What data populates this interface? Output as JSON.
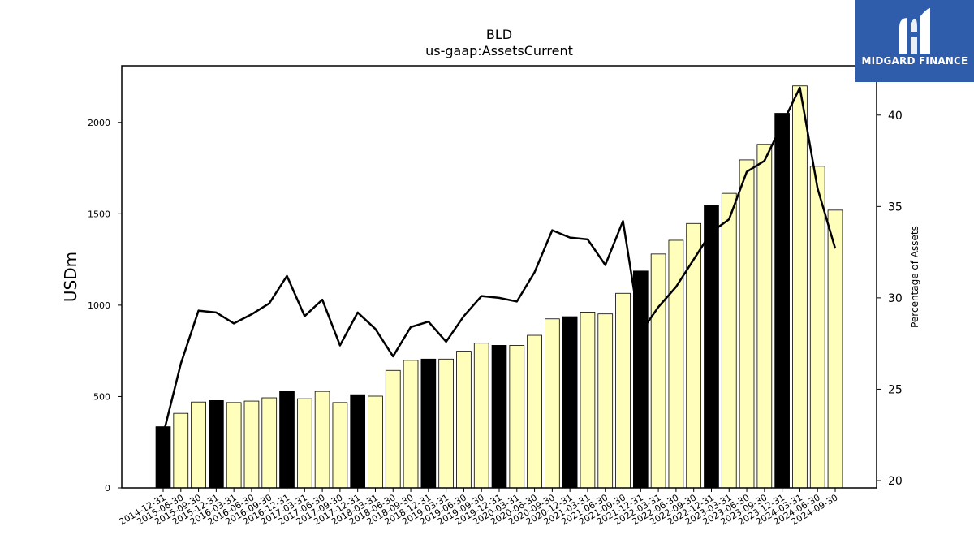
{
  "chart_data": {
    "type": "bar",
    "title": "BLD",
    "subtitle": "us-gaap:AssetsCurrent",
    "ylabel": "USDm",
    "y2label": "Percentage of Assets",
    "ylim": [
      0,
      2310
    ],
    "y2lim": [
      19.6,
      42.7
    ],
    "yticks": [
      0,
      500,
      1000,
      1500,
      2000
    ],
    "y2ticks": [
      20,
      25,
      30,
      35,
      40
    ],
    "categories": [
      "2014-12-31",
      "2015-06-30",
      "2015-09-30",
      "2015-12-31",
      "2016-03-31",
      "2016-06-30",
      "2016-09-30",
      "2016-12-31",
      "2017-03-31",
      "2017-06-30",
      "2017-09-30",
      "2017-12-31",
      "2018-03-31",
      "2018-06-30",
      "2018-09-30",
      "2018-12-31",
      "2019-03-31",
      "2019-06-30",
      "2019-09-30",
      "2019-12-31",
      "2020-03-31",
      "2020-06-30",
      "2020-09-30",
      "2020-12-31",
      "2021-03-31",
      "2021-06-30",
      "2021-09-30",
      "2021-12-31",
      "2022-03-31",
      "2022-06-30",
      "2022-09-30",
      "2022-12-31",
      "2023-03-31",
      "2023-06-30",
      "2023-09-30",
      "2023-12-31",
      "2024-03-31",
      "2024-06-30",
      "2024-09-30"
    ],
    "series": [
      {
        "type": "bar",
        "values": [
          335,
          408,
          470,
          478,
          467,
          475,
          493,
          528,
          488,
          528,
          467,
          510,
          502,
          643,
          698,
          705,
          705,
          748,
          792,
          780,
          780,
          835,
          925,
          937,
          962,
          952,
          1065,
          1187,
          1280,
          1355,
          1447,
          1545,
          1612,
          1795,
          1880,
          2050,
          2200,
          1760,
          1520
        ],
        "year_end_flags": [
          true,
          false,
          false,
          true,
          false,
          false,
          false,
          true,
          false,
          false,
          false,
          true,
          false,
          false,
          false,
          true,
          false,
          false,
          false,
          true,
          false,
          false,
          false,
          true,
          false,
          false,
          false,
          true,
          false,
          false,
          false,
          true,
          false,
          false,
          false,
          true,
          false,
          false,
          false
        ],
        "colors": {
          "year_end": "#000000",
          "quarter": "#ffffbb",
          "edge": "#000000"
        }
      },
      {
        "type": "line",
        "axis": "right",
        "values": [
          22.5,
          26.4,
          29.3,
          29.2,
          28.6,
          29.1,
          29.7,
          31.2,
          29.0,
          29.9,
          27.4,
          29.2,
          28.3,
          26.8,
          28.4,
          28.7,
          27.6,
          29.0,
          30.1,
          30.0,
          29.8,
          31.4,
          33.7,
          33.3,
          33.2,
          31.8,
          34.2,
          28.1,
          29.5,
          30.6,
          32.1,
          33.6,
          34.3,
          36.9,
          37.5,
          39.5,
          41.5,
          36.0,
          32.7
        ],
        "color": "#000000"
      }
    ],
    "grid": false
  },
  "logo": {
    "text": "MIDGARD FINANCE",
    "background": "#2f5cab"
  }
}
